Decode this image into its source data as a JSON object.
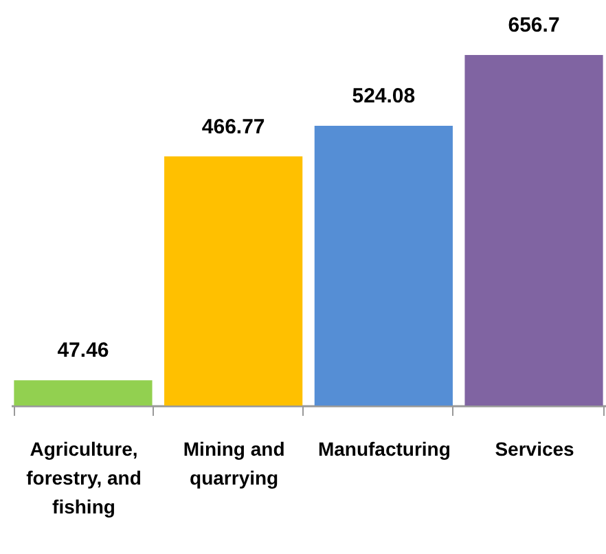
{
  "chart_data": {
    "type": "bar",
    "categories": [
      "Agriculture, forestry, and fishing",
      "Mining and quarrying",
      "Manufacturing",
      "Services"
    ],
    "values": [
      47.46,
      466.77,
      524.08,
      656.7
    ],
    "colors": [
      "#92d050",
      "#ffc000",
      "#558ed5",
      "#8064a2"
    ],
    "data_labels": true
  }
}
